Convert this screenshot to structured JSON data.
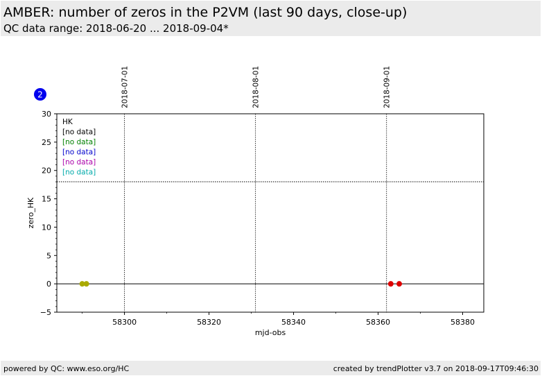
{
  "header": {
    "title": "AMBER: number of zeros in the P2VM (last 90 days, close-up)",
    "subtitle": "QC data range: 2018-06-20 ... 2018-09-04*"
  },
  "footer": {
    "left": "powered by QC: www.eso.org/HC",
    "right": "created by trendPlotter v3.7 on 2018-09-17T09:46:30"
  },
  "badge": {
    "label": "2",
    "color": "#0000ee"
  },
  "chart_data": {
    "type": "scatter",
    "xlabel": "mjd-obs",
    "ylabel": "zero_HK",
    "xlim": [
      58284,
      58385
    ],
    "ylim": [
      -5,
      30
    ],
    "x_ticks": [
      58300,
      58320,
      58340,
      58360,
      58380
    ],
    "y_ticks": [
      -5,
      0,
      5,
      10,
      15,
      20,
      25,
      30
    ],
    "date_markers": [
      {
        "x": 58300,
        "label": "2018-07-01"
      },
      {
        "x": 58331,
        "label": "2018-08-01"
      },
      {
        "x": 58362,
        "label": "2018-09-01"
      }
    ],
    "reference_lines": [
      {
        "y": 18,
        "style": "dotted"
      },
      {
        "y": 0,
        "style": "solid"
      }
    ],
    "legend": {
      "placement": "top-left",
      "title": "HK",
      "entries": [
        {
          "label": "[no data]",
          "color": "#000000"
        },
        {
          "label": "[no data]",
          "color": "#008000"
        },
        {
          "label": "[no data]",
          "color": "#0000cc"
        },
        {
          "label": "[no data]",
          "color": "#aa00aa"
        },
        {
          "label": "[no data]",
          "color": "#00aaaa"
        }
      ]
    },
    "series": [
      {
        "color": "#aaaa00",
        "points": [
          {
            "x": 58290,
            "y": 0
          },
          {
            "x": 58291,
            "y": 0
          }
        ]
      },
      {
        "color": "#dd0000",
        "points": [
          {
            "x": 58363,
            "y": 0
          },
          {
            "x": 58365,
            "y": 0
          }
        ]
      }
    ]
  }
}
